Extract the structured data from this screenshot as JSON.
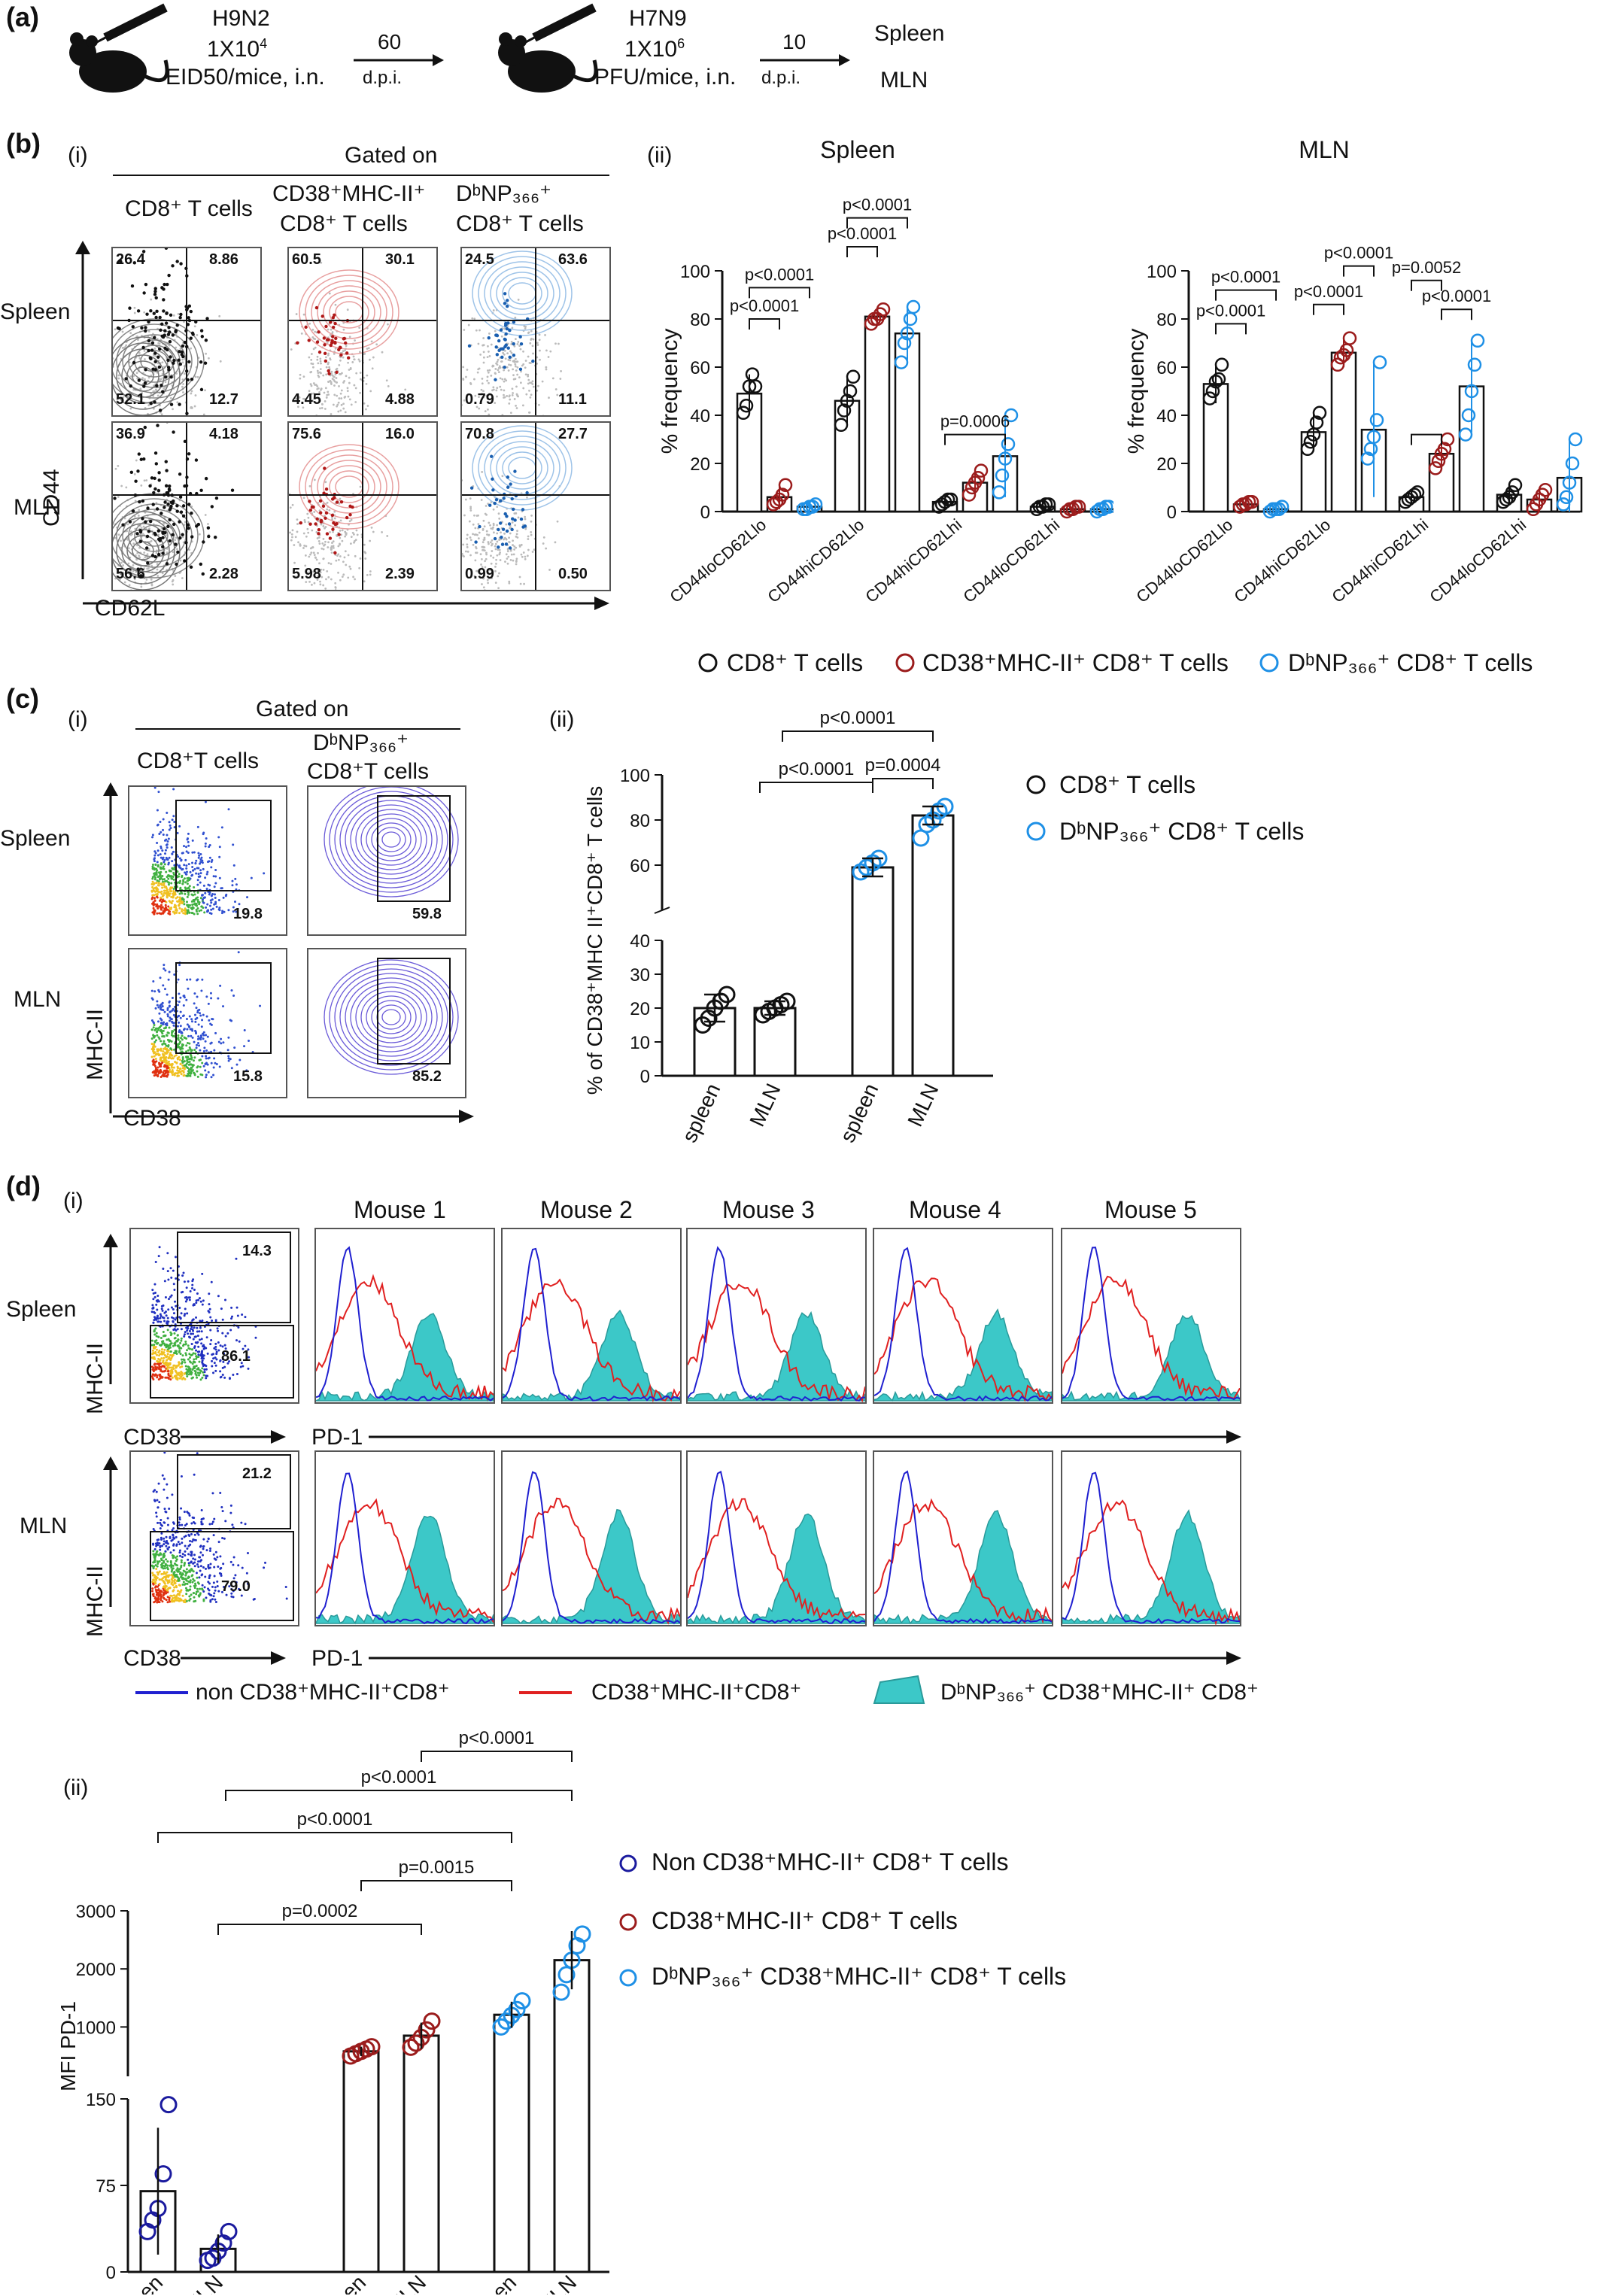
{
  "panel_a": {
    "letter": "(a)",
    "step1": {
      "virus": "H9N2",
      "dose_base": "1X10",
      "dose_exp": "4",
      "dose_unit": "EID50/mice, i.n."
    },
    "interval1": {
      "value": "60",
      "unit": "d.p.i."
    },
    "step2": {
      "virus": "H7N9",
      "dose_base": "1X10",
      "dose_exp": "6",
      "dose_unit": "PFU/mice, i.n."
    },
    "interval2": {
      "value": "10",
      "unit": "d.p.i."
    },
    "endpoints": [
      "Spleen",
      "MLN"
    ]
  },
  "panel_b": {
    "letter": "(b)",
    "sub_i": "(i)",
    "sub_ii": "(ii)",
    "gated_on": "Gated on",
    "col_heads": [
      "CD8⁺ T cells",
      "CD38⁺MHC-II⁺",
      "CD8⁺ T cells",
      "DᵇNP₃₆₆⁺",
      "CD8⁺ T cells"
    ],
    "row_labels": [
      "Spleen",
      "MLN"
    ],
    "y_axis": "CD44",
    "x_axis": "CD62L",
    "quadrants": [
      [
        [
          "26.4",
          "8.86",
          "52.1",
          "12.7"
        ],
        [
          "60.5",
          "30.1",
          "4.45",
          "4.88"
        ],
        [
          "24.5",
          "63.6",
          "0.79",
          "11.1"
        ]
      ],
      [
        [
          "36.9",
          "4.18",
          "56.6",
          "2.28"
        ],
        [
          "75.6",
          "16.0",
          "5.98",
          "2.39"
        ],
        [
          "70.8",
          "27.7",
          "0.99",
          "0.50"
        ]
      ]
    ],
    "legend": [
      "CD8⁺ T cells",
      "CD38⁺MHC-II⁺ CD8⁺ T cells",
      "DᵇNP₃₆₆⁺ CD8⁺ T cells"
    ]
  },
  "panel_c": {
    "letter": "(c)",
    "sub_i": "(i)",
    "sub_ii": "(ii)",
    "gated_on": "Gated on",
    "col_heads": [
      "CD8⁺T cells",
      "DᵇNP₃₆₆⁺",
      "CD8⁺T cells"
    ],
    "row_labels": [
      "Spleen",
      "MLN"
    ],
    "y_axis": "MHC-II",
    "x_axis": "CD38",
    "gates": [
      [
        "19.8",
        "59.8"
      ],
      [
        "15.8",
        "85.2"
      ]
    ],
    "legend": [
      "CD8⁺ T cells",
      "DᵇNP₃₆₆⁺ CD8⁺ T cells"
    ]
  },
  "panel_d": {
    "letter": "(d)",
    "sub_i": "(i)",
    "sub_ii": "(ii)",
    "mice": [
      "Mouse 1",
      "Mouse 2",
      "Mouse 3",
      "Mouse 4",
      "Mouse 5"
    ],
    "row_labels": [
      "Spleen",
      "MLN"
    ],
    "y_axis": "MHC-II",
    "x_axis": "CD38",
    "pd1_axis": "PD-1",
    "gates": [
      [
        "14.3",
        "86.1"
      ],
      [
        "21.2",
        "79.0"
      ]
    ],
    "hist_legend": [
      "non CD38⁺MHC-II⁺CD8⁺",
      "CD38⁺MHC-II⁺CD8⁺",
      "DᵇNP₃₆₆⁺ CD38⁺MHC-II⁺ CD8⁺"
    ],
    "bar_legend": [
      "Non CD38⁺MHC-II⁺ CD8⁺ T cells",
      "CD38⁺MHC-II⁺ CD8⁺ T cells",
      "DᵇNP₃₆₆⁺ CD38⁺MHC-II⁺ CD8⁺ T cells"
    ]
  },
  "colors": {
    "black": "#111111",
    "darkred": "#9b1c1c",
    "lightblue": "#1e90e6",
    "navy": "#1a1a9e",
    "teal": "#3cc8c8",
    "red": "#e02020",
    "blue": "#2020d0"
  },
  "chart_data": [
    {
      "type": "bar",
      "title": "Spleen",
      "ylabel": "% frequency",
      "ylim": [
        0,
        100
      ],
      "categories": [
        "CD44loCD62Llo",
        "CD44hiCD62Llo",
        "CD44hiCD62Lhi",
        "CD44loCD62Lhi"
      ],
      "series": [
        {
          "name": "CD8⁺ T cells",
          "values": [
            49,
            46,
            4,
            2
          ],
          "points": [
            [
              41,
              44,
              52,
              57,
              52
            ],
            [
              36,
              42,
              46,
              50,
              56
            ],
            [
              2,
              3,
              4,
              5,
              5
            ],
            [
              1,
              2,
              2,
              3,
              3
            ]
          ]
        },
        {
          "name": "CD38⁺MHC-II⁺ CD8⁺ T cells",
          "values": [
            6,
            81,
            12,
            1
          ],
          "points": [
            [
              3,
              4,
              5,
              7,
              11
            ],
            [
              78,
              80,
              80,
              82,
              84
            ],
            [
              7,
              10,
              12,
              14,
              17
            ],
            [
              0,
              1,
              1,
              2,
              2
            ]
          ]
        },
        {
          "name": "DᵇNP₃₆₆⁺ CD8⁺ T cells",
          "values": [
            2,
            74,
            23,
            1
          ],
          "points": [
            [
              1,
              1,
              2,
              2,
              3
            ],
            [
              62,
              70,
              74,
              80,
              85
            ],
            [
              8,
              15,
              22,
              28,
              40
            ],
            [
              0,
              1,
              1,
              2,
              2
            ]
          ]
        }
      ],
      "annotations": [
        "p<0.0001",
        "p<0.0001",
        "p<0.0001",
        "p<0.0001",
        "p=0.0006"
      ]
    },
    {
      "type": "bar",
      "title": "MLN",
      "ylabel": "% frequency",
      "ylim": [
        0,
        100
      ],
      "categories": [
        "CD44loCD62Llo",
        "CD44hiCD62Llo",
        "CD44hiCD62Lhi",
        "CD44loCD62Lhi"
      ],
      "series": [
        {
          "name": "CD8⁺ T cells",
          "values": [
            53,
            33,
            6,
            7
          ],
          "points": [
            [
              47,
              50,
              54,
              55,
              61
            ],
            [
              26,
              29,
              32,
              37,
              41
            ],
            [
              4,
              5,
              6,
              7,
              8
            ],
            [
              4,
              5,
              6,
              8,
              11
            ]
          ]
        },
        {
          "name": "CD38⁺MHC-II⁺ CD8⁺ T cells",
          "values": [
            3,
            66,
            24,
            5
          ],
          "points": [
            [
              2,
              3,
              3,
              4,
              4
            ],
            [
              61,
              64,
              65,
              67,
              72
            ],
            [
              18,
              21,
              24,
              26,
              30
            ],
            [
              1,
              3,
              5,
              7,
              9
            ]
          ]
        },
        {
          "name": "DᵇNP₃₆₆⁺ CD8⁺ T cells",
          "values": [
            1,
            34,
            52,
            14
          ],
          "points": [
            [
              0,
              1,
              1,
              1,
              2
            ],
            [
              22,
              26,
              31,
              38,
              62
            ],
            [
              32,
              40,
              50,
              61,
              71
            ],
            [
              3,
              6,
              12,
              20,
              30
            ]
          ]
        }
      ],
      "annotations": [
        "p<0.0001",
        "p<0.0001",
        "p<0.0001",
        "p<0.0001",
        "p<0.0001",
        "p=0.0052"
      ]
    },
    {
      "type": "bar",
      "ylabel": "% of CD38⁺MHC II⁺CD8⁺ T cells",
      "ylim_lower": [
        0,
        40
      ],
      "ylim_upper": [
        40,
        100
      ],
      "categories": [
        "spleen",
        "MLN",
        "spleen",
        "MLN"
      ],
      "series": [
        {
          "name": "CD8⁺ T cells",
          "values": [
            20,
            20,
            null,
            null
          ],
          "points": [
            [
              15,
              17,
              20,
              22,
              24
            ],
            [
              18,
              19,
              20,
              21,
              22
            ],
            [],
            []
          ]
        },
        {
          "name": "DᵇNP₃₆₆⁺ CD8⁺ T cells",
          "values": [
            null,
            null,
            59,
            82
          ],
          "points": [
            [],
            [],
            [
              57,
              59,
              61,
              63
            ],
            [
              72,
              78,
              80,
              84,
              86
            ]
          ]
        }
      ],
      "annotations": [
        "p<0.0001",
        "p<0.0001",
        "p=0.0004"
      ]
    },
    {
      "type": "bar",
      "ylabel": "MFI PD-1",
      "ylim_lower": [
        0,
        150
      ],
      "ylim_upper": [
        150,
        3000
      ],
      "categories": [
        "spleen",
        "MLN",
        "spleen",
        "MLN",
        "spleen",
        "MLN"
      ],
      "series": [
        {
          "name": "Non CD38⁺MHC-II⁺ CD8⁺ T cells",
          "values": [
            70,
            20,
            null,
            null,
            null,
            null
          ],
          "points": [
            [
              35,
              45,
              55,
              85,
              145
            ],
            [
              10,
              12,
              18,
              25,
              35
            ],
            [],
            [],
            [],
            []
          ]
        },
        {
          "name": "CD38⁺MHC-II⁺ CD8⁺ T cells",
          "values": [
            null,
            null,
            580,
            850,
            null,
            null
          ],
          "points": [
            [],
            [],
            [
              500,
              540,
              580,
              620,
              660
            ],
            [
              650,
              720,
              820,
              950,
              1100
            ],
            [],
            []
          ]
        },
        {
          "name": "DᵇNP₃₆₆⁺ CD38⁺MHC-II⁺ CD8⁺ T cells",
          "values": [
            null,
            null,
            null,
            null,
            1210,
            2150
          ],
          "points": [
            [],
            [],
            [],
            [],
            [
              1000,
              1100,
              1200,
              1300,
              1450
            ],
            [
              1600,
              1900,
              2150,
              2400,
              2600
            ]
          ]
        }
      ],
      "annotations": [
        "p<0.0001",
        "p<0.0001",
        "p<0.0001",
        "p=0.0015",
        "p=0.0002"
      ]
    }
  ]
}
